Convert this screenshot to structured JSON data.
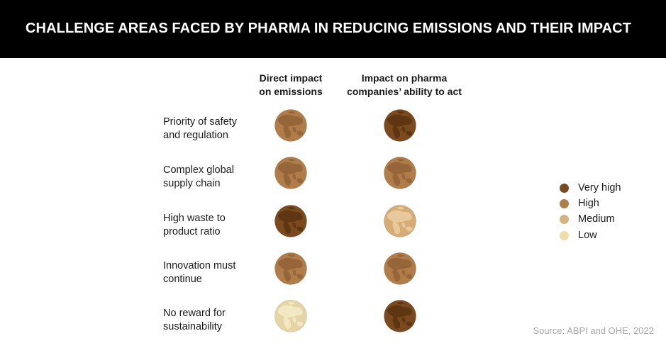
{
  "title": "CHALLENGE AREAS FACED BY PHARMA IN REDUCING EMISSIONS AND THEIR IMPACT",
  "source": "Source: ABPI and OHE, 2022",
  "chart_data": {
    "type": "table",
    "columns": [
      {
        "line1": "Direct impact",
        "line2": "on emissions"
      },
      {
        "line1": "Impact on pharma",
        "line2": "companies’ ability to act"
      }
    ],
    "rows": [
      {
        "line1": "Priority of safety",
        "line2": "and regulation",
        "values": [
          "High",
          "Very high"
        ]
      },
      {
        "line1": "Complex global",
        "line2": "supply chain",
        "values": [
          "High",
          "High"
        ]
      },
      {
        "line1": "High waste to",
        "line2": "product ratio",
        "values": [
          "Very high",
          "Medium"
        ]
      },
      {
        "line1": "Innovation must",
        "line2": "continue",
        "values": [
          "High",
          "High"
        ]
      },
      {
        "line1": "No reward for",
        "line2": "sustainability",
        "values": [
          "Low",
          "Very high"
        ]
      }
    ],
    "legend": [
      {
        "label": "Very high",
        "color": "#7a4a1e"
      },
      {
        "label": "High",
        "color": "#b07d49"
      },
      {
        "label": "Medium",
        "color": "#d6b37e"
      },
      {
        "label": "Low",
        "color": "#f0dca6"
      }
    ],
    "globe_colors": {
      "Very high": {
        "sea": "#7a4a1e",
        "land": "#5e3612"
      },
      "High": {
        "sea": "#b07d49",
        "land": "#96663a"
      },
      "Medium": {
        "sea": "#d6ac74",
        "land": "#e8c99c"
      },
      "Low": {
        "sea": "#e6d5a4",
        "land": "#f3e8c4"
      }
    }
  }
}
